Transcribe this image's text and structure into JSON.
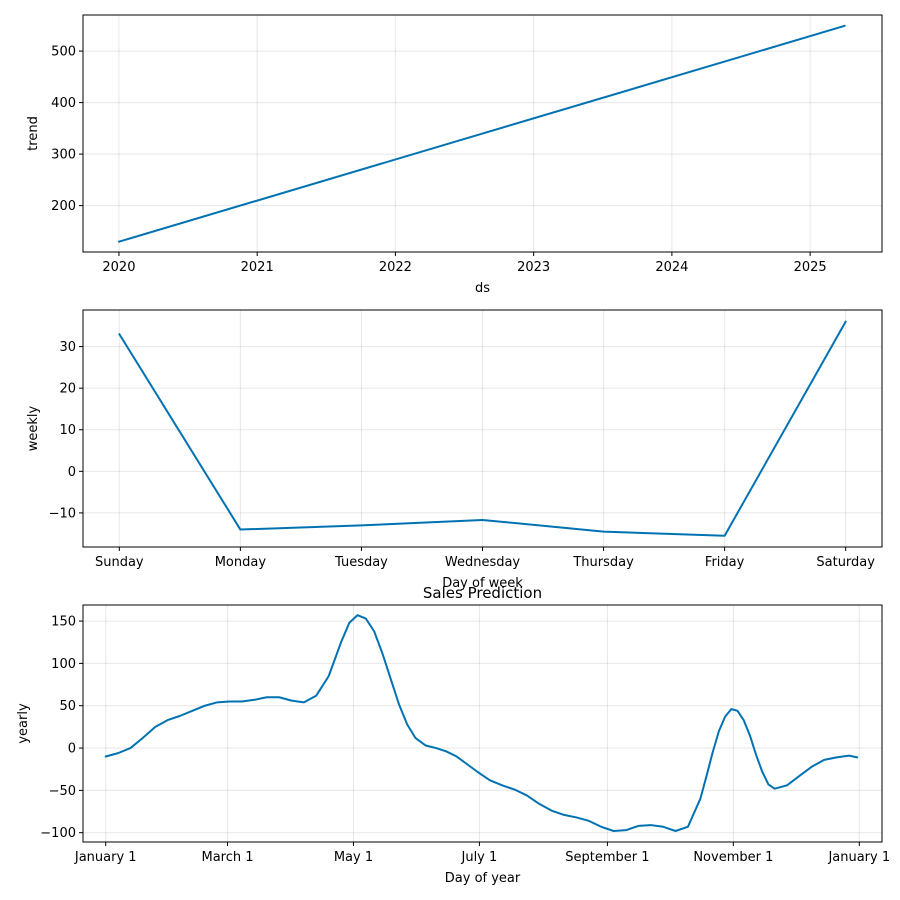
{
  "chart_data": [
    {
      "type": "line",
      "id": "trend",
      "title": "",
      "xlabel": "ds",
      "ylabel": "trend",
      "xlim": [
        2019.74,
        2025.52
      ],
      "ylim": [
        110,
        570
      ],
      "x_ticks": [
        2020,
        2021,
        2022,
        2023,
        2024,
        2025
      ],
      "x_tick_labels": [
        "2020",
        "2021",
        "2022",
        "2023",
        "2024",
        "2025"
      ],
      "y_ticks": [
        200,
        300,
        400,
        500
      ],
      "y_tick_labels": [
        "200",
        "300",
        "400",
        "500"
      ],
      "grid": true,
      "series": [
        {
          "name": "trend",
          "color": "#0072B2",
          "x": [
            2020.0,
            2025.25
          ],
          "y": [
            130,
            549
          ]
        }
      ]
    },
    {
      "type": "line",
      "id": "weekly",
      "title": "",
      "xlabel": "Day of week",
      "ylabel": "weekly",
      "xlim": [
        -0.3,
        6.3
      ],
      "ylim": [
        -18.2,
        38.8
      ],
      "x_ticks": [
        0,
        1,
        2,
        3,
        4,
        5,
        6
      ],
      "x_tick_labels": [
        "Sunday",
        "Monday",
        "Tuesday",
        "Wednesday",
        "Thursday",
        "Friday",
        "Saturday"
      ],
      "y_ticks": [
        -10,
        0,
        10,
        20,
        30
      ],
      "y_tick_labels": [
        "−10",
        "0",
        "10",
        "20",
        "30"
      ],
      "grid": true,
      "series": [
        {
          "name": "weekly",
          "color": "#0072B2",
          "x": [
            0,
            1,
            2,
            3,
            4,
            5,
            6
          ],
          "y": [
            33,
            -14,
            -13,
            -11.7,
            -14.5,
            -15.5,
            36
          ]
        }
      ]
    },
    {
      "type": "line",
      "id": "yearly",
      "title": "Sales Prediction",
      "xlabel": "Day of year",
      "ylabel": "yearly",
      "xlim": [
        -11,
        376
      ],
      "ylim": [
        -111,
        169
      ],
      "x_ticks": [
        0,
        59,
        120,
        181,
        243,
        304,
        365
      ],
      "x_tick_labels": [
        "January 1",
        "March 1",
        "May 1",
        "July 1",
        "September 1",
        "November 1",
        "January 1"
      ],
      "y_ticks": [
        -100,
        -50,
        0,
        50,
        100,
        150
      ],
      "y_tick_labels": [
        "−100",
        "−50",
        "0",
        "50",
        "100",
        "150"
      ],
      "grid": true,
      "series": [
        {
          "name": "yearly",
          "color": "#0072B2",
          "x": [
            0,
            6,
            12,
            18,
            24,
            30,
            36,
            42,
            48,
            54,
            60,
            66,
            72,
            78,
            84,
            90,
            96,
            102,
            108,
            114,
            118,
            122,
            126,
            130,
            134,
            138,
            142,
            146,
            150,
            155,
            160,
            165,
            170,
            175,
            180,
            186,
            192,
            198,
            204,
            210,
            216,
            222,
            228,
            234,
            240,
            246,
            252,
            258,
            264,
            270,
            276,
            282,
            288,
            291,
            294,
            297,
            300,
            303,
            306,
            309,
            312,
            315,
            318,
            321,
            324,
            330,
            336,
            342,
            348,
            354,
            360,
            364
          ],
          "y": [
            -10,
            -6,
            0,
            12,
            25,
            33,
            38,
            44,
            50,
            54,
            55,
            55,
            57,
            60,
            60,
            56,
            54,
            62,
            85,
            125,
            148,
            157,
            153,
            138,
            112,
            82,
            52,
            28,
            12,
            3,
            0,
            -4,
            -10,
            -19,
            -28,
            -38,
            -44,
            -49,
            -56,
            -66,
            -74,
            -79,
            -82,
            -86,
            -93,
            -98,
            -97,
            -92,
            -91,
            -93,
            -98,
            -93,
            -60,
            -33,
            -5,
            20,
            37,
            46,
            44,
            33,
            15,
            -8,
            -28,
            -43,
            -48,
            -44,
            -33,
            -22,
            -14,
            -11,
            -9,
            -11
          ]
        }
      ]
    }
  ]
}
